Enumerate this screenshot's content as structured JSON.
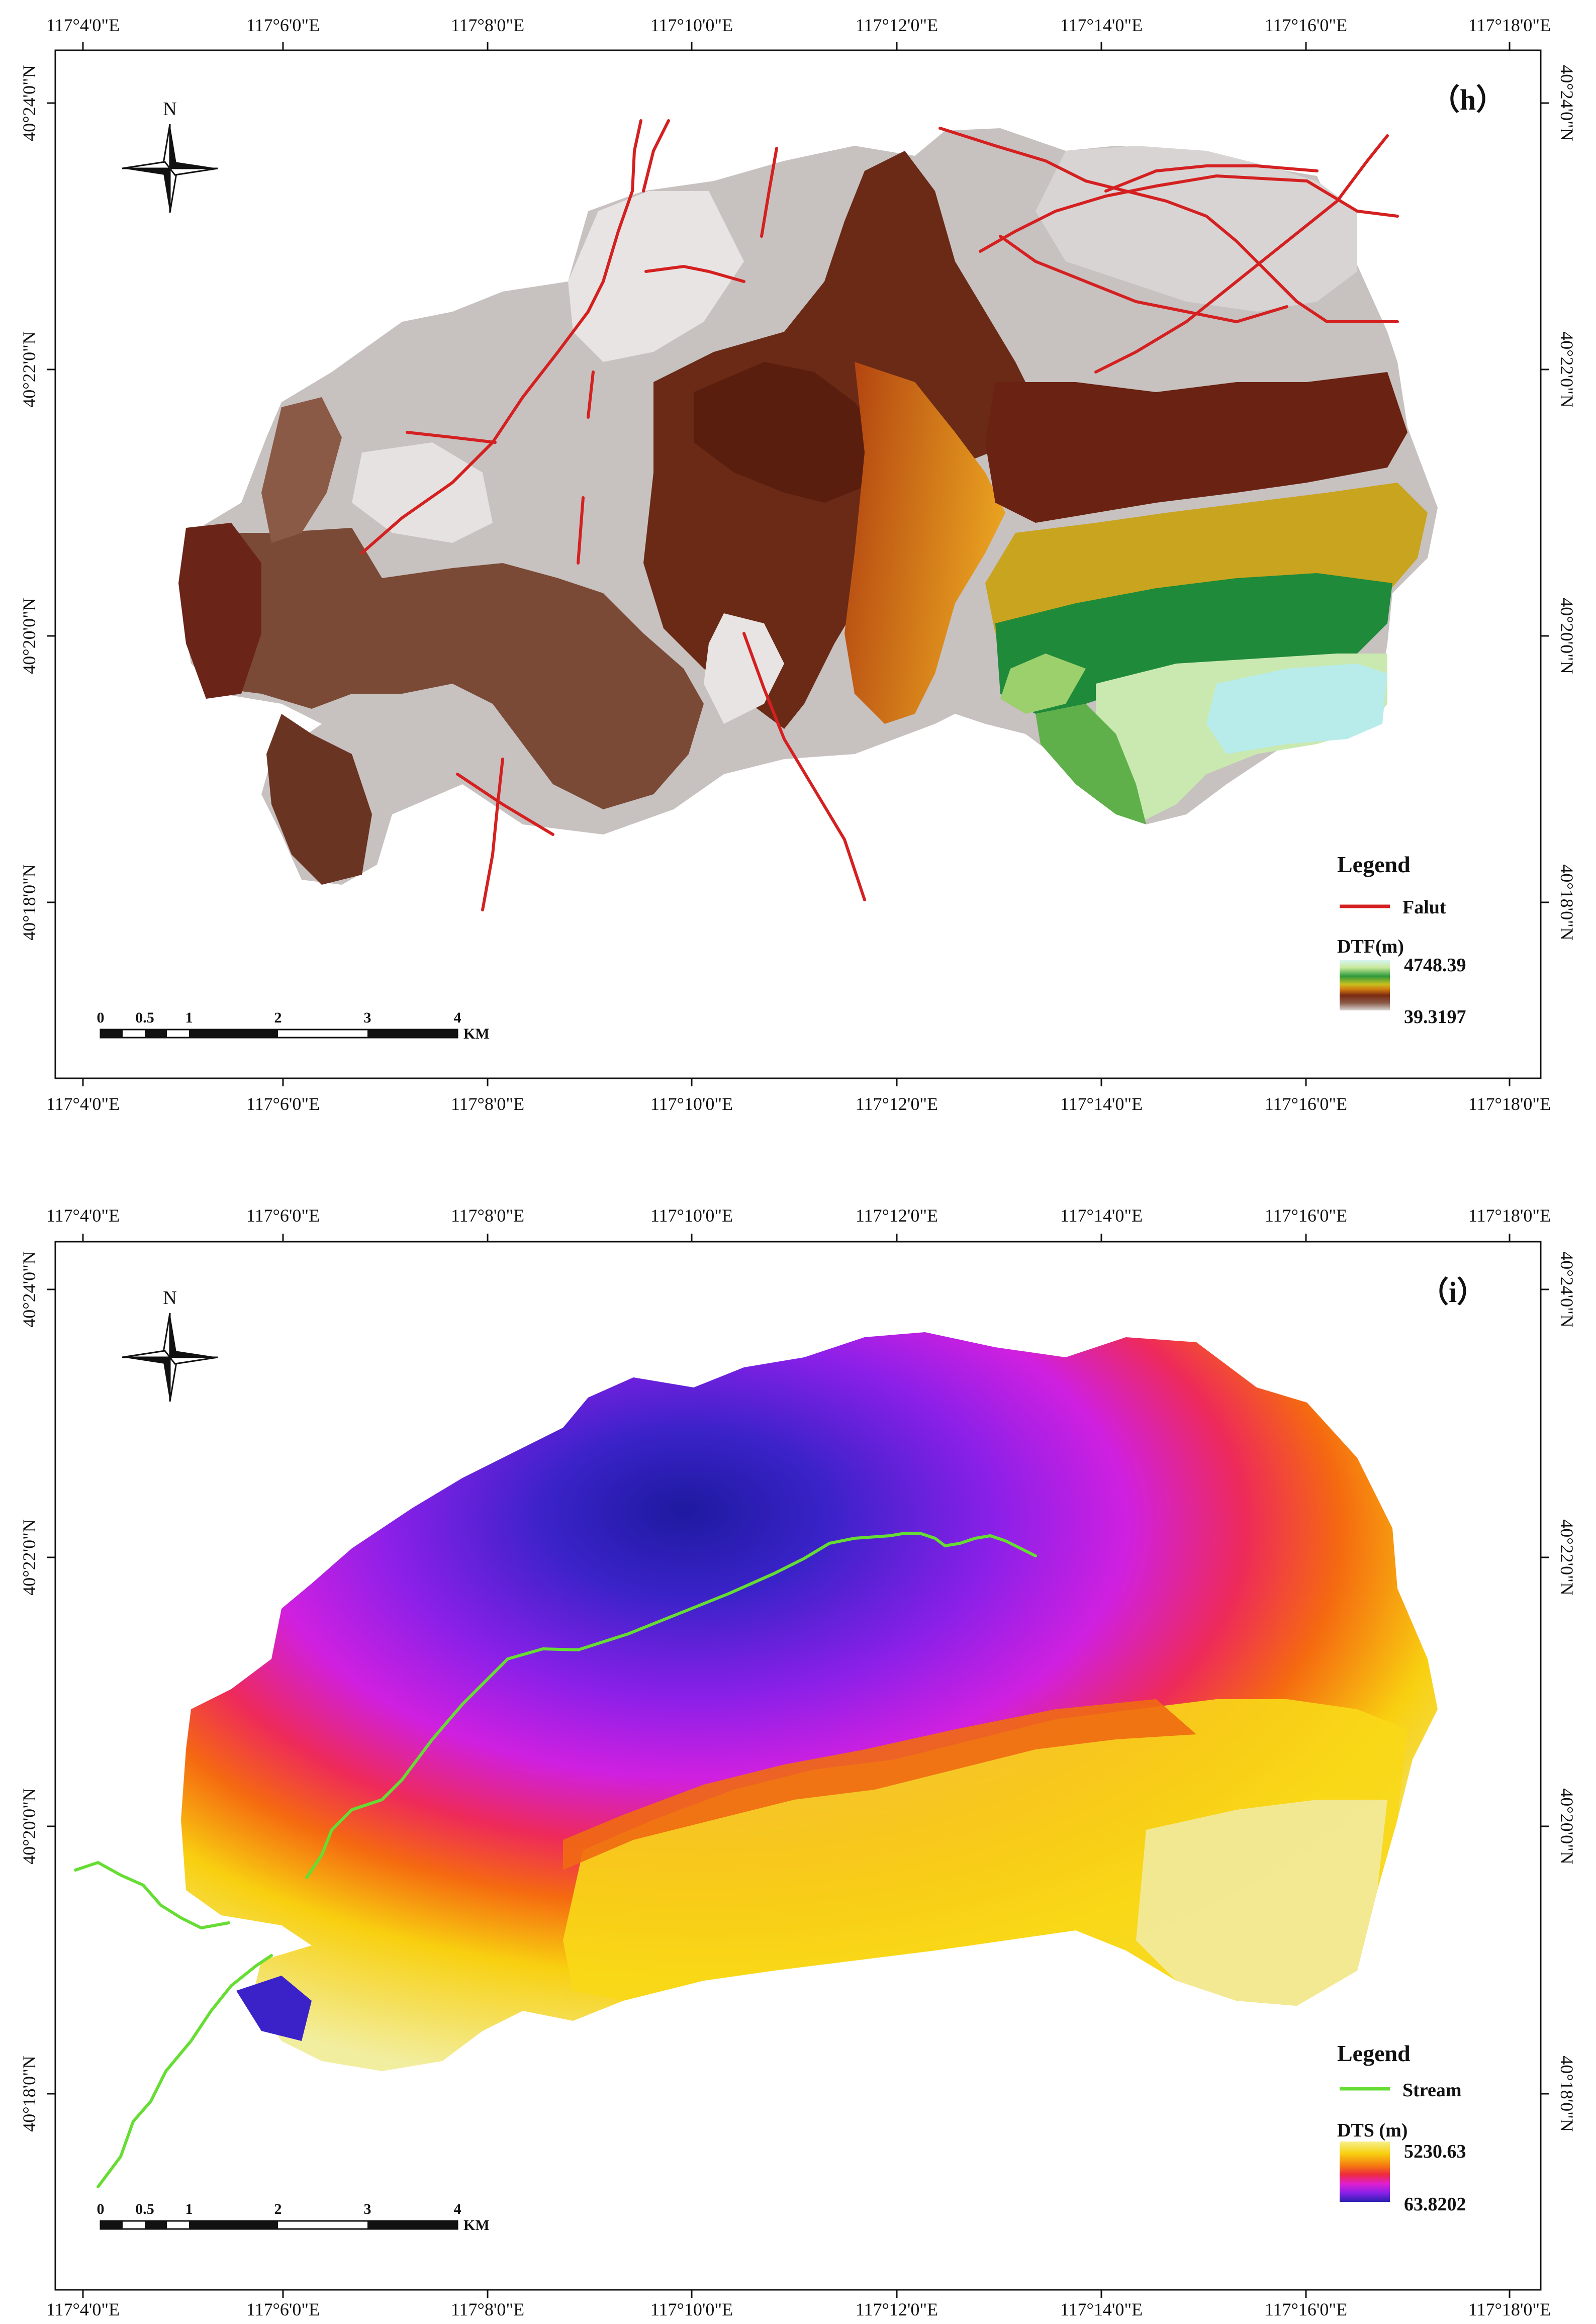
{
  "panels": [
    {
      "id": "h",
      "label": "（h）",
      "top_ticks": [
        "117°4'0\"E",
        "117°6'0\"E",
        "117°8'0\"E",
        "117°10'0\"E",
        "117°12'0\"E",
        "117°14'0\"E",
        "117°16'0\"E",
        "117°18'0\"E"
      ],
      "bottom_ticks": [
        "117°4'0\"E",
        "117°6'0\"E",
        "117°8'0\"E",
        "117°10'0\"E",
        "117°12'0\"E",
        "117°14'0\"E",
        "117°16'0\"E",
        "117°18'0\"E"
      ],
      "left_ticks": [
        "40°24'0\"N",
        "40°22'0\"N",
        "40°20'0\"N",
        "40°18'0\"N"
      ],
      "right_ticks": [
        "40°24'0\"N",
        "40°22'0\"N",
        "40°20'0\"N",
        "40°18'0\"N"
      ],
      "legend": {
        "title": "Legend",
        "line_label": "Falut",
        "line_color": "#d42020",
        "ramp_title": "DTF(m)",
        "ramp_max": "4748.39",
        "ramp_min": "39.3197",
        "ramp_colors": [
          "#d8f5f2",
          "#c8e89a",
          "#2e9a3c",
          "#c8c020",
          "#d07a10",
          "#7a2a10",
          "#8a5a48",
          "#d8d4d2"
        ]
      },
      "scale_bar": {
        "labels": [
          "0",
          "0.5",
          "1",
          "2",
          "3",
          "4"
        ],
        "unit": "KM"
      },
      "north_label": "N"
    },
    {
      "id": "i",
      "label": "（i）",
      "top_ticks": [
        "117°4'0\"E",
        "117°6'0\"E",
        "117°8'0\"E",
        "117°10'0\"E",
        "117°12'0\"E",
        "117°14'0\"E",
        "117°16'0\"E",
        "117°18'0\"E"
      ],
      "bottom_ticks": [
        "117°4'0\"E",
        "117°6'0\"E",
        "117°8'0\"E",
        "117°10'0\"E",
        "117°12'0\"E",
        "117°14'0\"E",
        "117°16'0\"E",
        "117°18'0\"E"
      ],
      "left_ticks": [
        "40°24'0\"N",
        "40°22'0\"N",
        "40°20'0\"N",
        "40°18'0\"N"
      ],
      "right_ticks": [
        "40°24'0\"N",
        "40°22'0\"N",
        "40°20'0\"N",
        "40°18'0\"N"
      ],
      "legend": {
        "title": "Legend",
        "line_label": "Stream",
        "line_color": "#66dd33",
        "ramp_title": "DTS (m)",
        "ramp_max": "5230.63",
        "ramp_min": "63.8202",
        "ramp_colors": [
          "#f5f08a",
          "#f8d010",
          "#f57a10",
          "#ee2a40",
          "#e020d0",
          "#8a20e8",
          "#2a20b0"
        ]
      },
      "scale_bar": {
        "labels": [
          "0",
          "0.5",
          "1",
          "2",
          "3",
          "4"
        ],
        "unit": "KM"
      },
      "north_label": "N"
    }
  ]
}
